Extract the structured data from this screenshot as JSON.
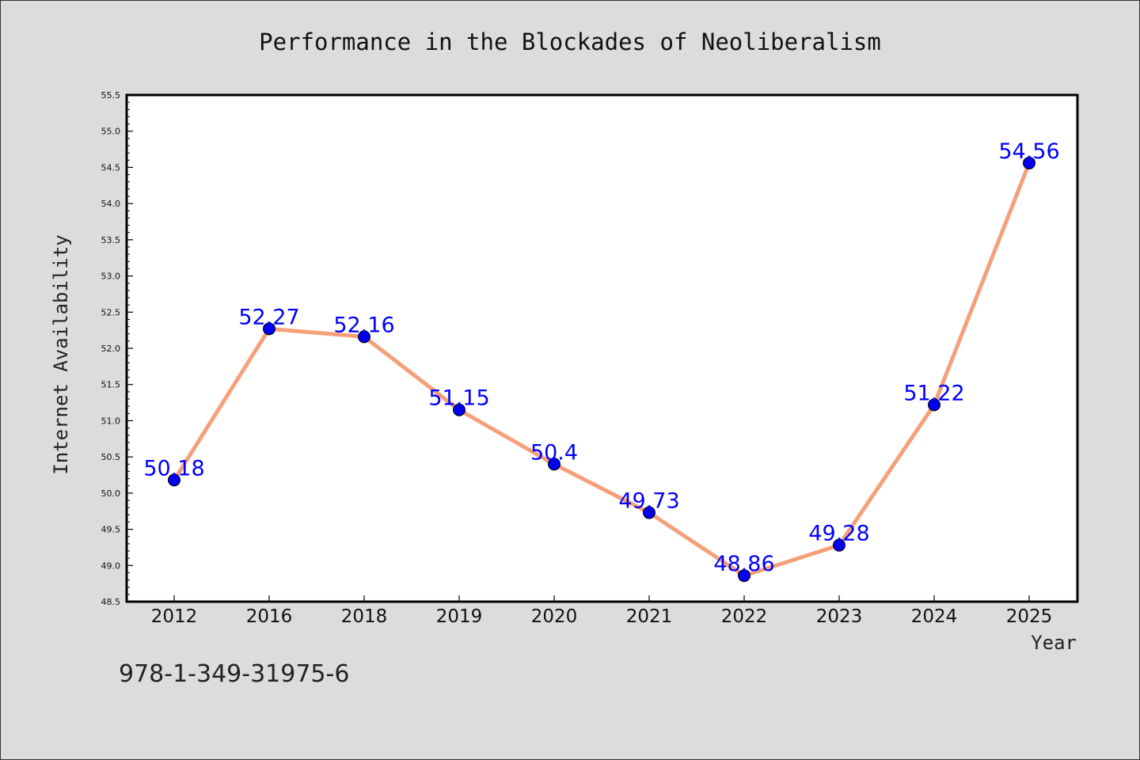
{
  "chart_data": {
    "type": "line",
    "title": "Performance in the Blockades of Neoliberalism",
    "xlabel": "Year",
    "ylabel": "Internet Availability",
    "categories": [
      "2012",
      "2016",
      "2018",
      "2019",
      "2020",
      "2021",
      "2022",
      "2023",
      "2024",
      "2025"
    ],
    "values": [
      50.18,
      52.27,
      52.16,
      51.15,
      50.4,
      49.73,
      48.86,
      49.28,
      51.22,
      54.56
    ],
    "data_labels": [
      "50.18",
      "52.27",
      "52.16",
      "51.15",
      "50.4",
      "49.73",
      "48.86",
      "49.28",
      "51.22",
      "54.56"
    ],
    "ylim": [
      48.5,
      55.5
    ],
    "yticks": [
      "48.5",
      "49.0",
      "49.5",
      "50.0",
      "50.5",
      "51.0",
      "51.5",
      "52.0",
      "52.5",
      "53.0",
      "53.5",
      "54.0",
      "54.5",
      "55.0",
      "55.5"
    ],
    "grid": false,
    "line_color": "#f4a07a",
    "marker_color": "#0000ee",
    "label_color": "#0000ff"
  },
  "footer": {
    "isbn": "978-1-349-31975-6"
  }
}
